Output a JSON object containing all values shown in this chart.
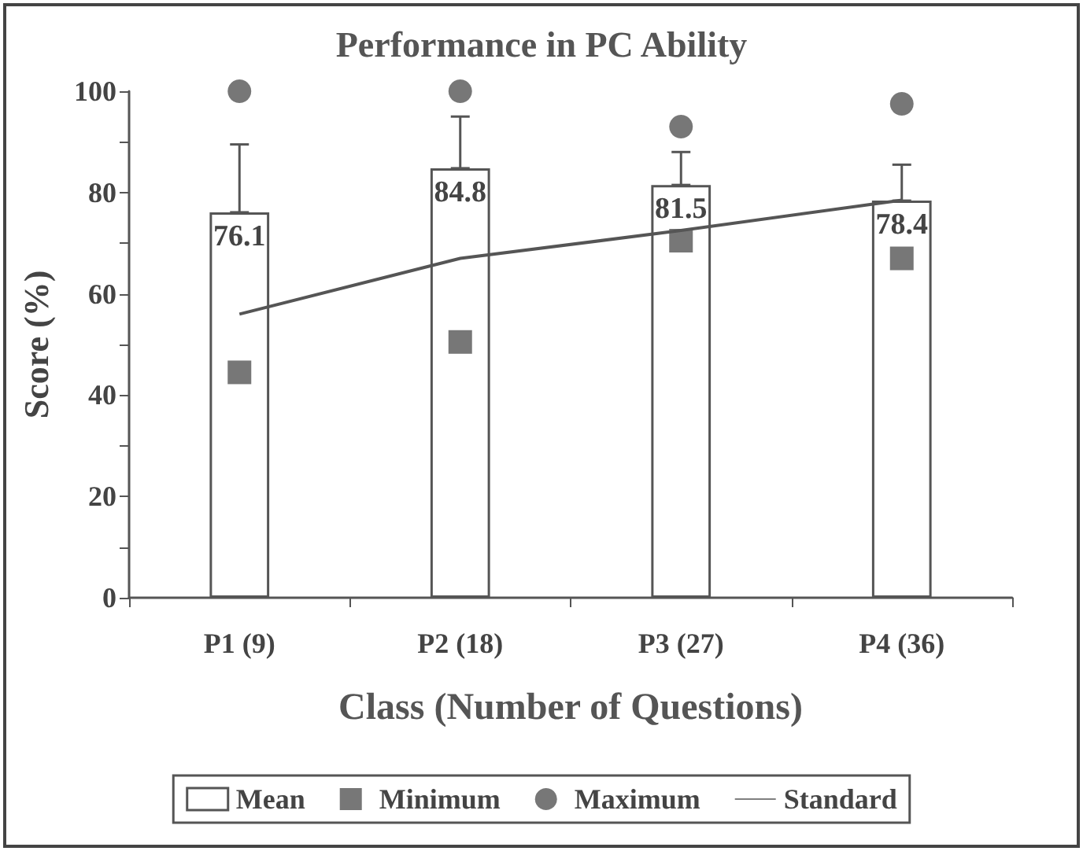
{
  "chart_data": {
    "type": "bar",
    "title": "Performance in PC Ability",
    "xlabel": "Class (Number of Questions)",
    "ylabel": "Score (%)",
    "categories": [
      "P1 (9)",
      "P2 (18)",
      "P3 (27)",
      "P4 (36)"
    ],
    "series": [
      {
        "name": "Mean",
        "color": "#ffffff",
        "values": [
          76.1,
          84.8,
          81.5,
          78.4
        ],
        "value_labels": [
          "76.1",
          "84.8",
          "81.5",
          "78.4"
        ],
        "errors": [
          [
            76.1,
            89.5
          ],
          [
            84.8,
            95
          ],
          [
            81.5,
            88
          ],
          [
            78.4,
            85.5
          ]
        ]
      },
      {
        "name": "Minimum",
        "type": "scatter",
        "marker": "square",
        "color": "#555555",
        "values": [
          44.5,
          50.5,
          70.5,
          67
        ]
      },
      {
        "name": "Maximum",
        "type": "scatter",
        "marker": "circle",
        "color": "#555555",
        "values": [
          100,
          100,
          93,
          97.5
        ]
      },
      {
        "name": "Standard",
        "type": "line",
        "marker": "none",
        "line_style": "solid",
        "color": "#555555",
        "values": [
          56,
          67,
          72.5,
          78.5
        ]
      }
    ],
    "ylim": [
      0,
      100
    ],
    "yticks": [
      0,
      {
        "value": 10,
        "label": null
      },
      20,
      {
        "value": 30,
        "label": null
      },
      40,
      {
        "value": 50,
        "label": null
      },
      60,
      {
        "value": 70,
        "label": null
      },
      80,
      {
        "value": 90,
        "label": null
      },
      100
    ],
    "grid": false,
    "legend": "bottom"
  }
}
